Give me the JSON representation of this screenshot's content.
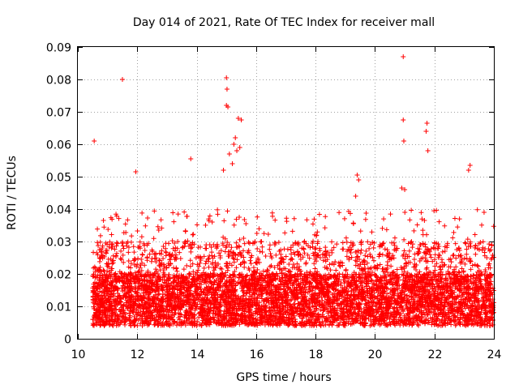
{
  "chart_data": {
    "type": "scatter",
    "title": "Day 014 of 2021, Rate Of TEC Index for receiver mall",
    "xlabel": "GPS time / hours",
    "ylabel": "ROTI / TECUs",
    "xlim": [
      10,
      24
    ],
    "ylim": [
      0,
      0.09
    ],
    "xticks": [
      "10",
      "12",
      "14",
      "16",
      "18",
      "20",
      "22",
      "24"
    ],
    "yticks": [
      "0",
      "0.01",
      "0.02",
      "0.03",
      "0.04",
      "0.05",
      "0.06",
      "0.07",
      "0.08",
      "0.09"
    ],
    "grid": true,
    "marker": "+",
    "color": "#ff0000",
    "series": [
      {
        "name": "ROTI",
        "x": [
          10.55,
          11.5,
          15.0,
          15.0,
          15.02,
          15.05,
          15.4,
          15.5,
          15.3,
          15.25,
          15.35,
          20.95,
          20.95,
          20.97,
          21.75,
          21.72,
          21.78,
          19.4,
          19.45,
          19.35,
          11.95,
          13.8,
          23.2,
          23.15,
          14.9,
          15.1,
          15.2,
          15.45,
          20.9,
          21.0
        ],
        "y": [
          0.061,
          0.08,
          0.0805,
          0.072,
          0.077,
          0.0715,
          0.068,
          0.0675,
          0.062,
          0.06,
          0.058,
          0.087,
          0.0675,
          0.061,
          0.0665,
          0.064,
          0.058,
          0.0505,
          0.049,
          0.044,
          0.0515,
          0.0555,
          0.0535,
          0.052,
          0.052,
          0.057,
          0.054,
          0.059,
          0.0465,
          0.046
        ]
      }
    ],
    "generated_series": {
      "x_start": 10.5,
      "x_end": 24.0,
      "count": 6200,
      "baseline_range": [
        0.004,
        0.02
      ],
      "typical_peak": 0.04
    }
  }
}
